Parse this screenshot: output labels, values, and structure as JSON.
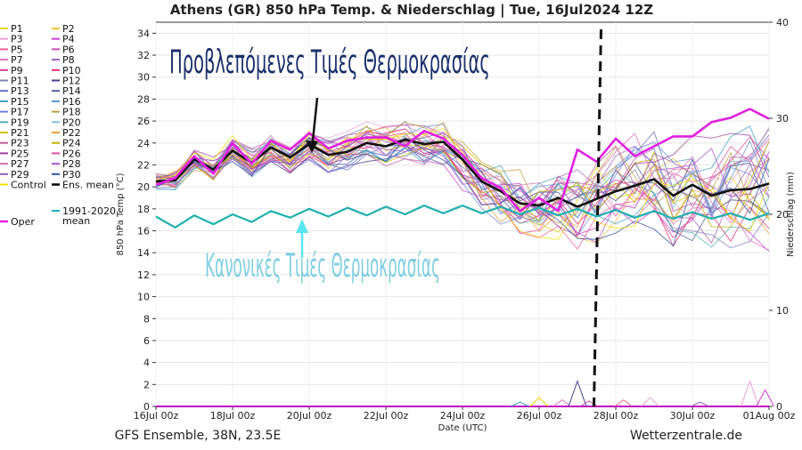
{
  "chart_data": {
    "type": "line",
    "title": "Athens  (GR)  850 hPa Temp. & Niederschlag | Tue, 16Jul2024 12Z",
    "xlabel": "Date (UTC)",
    "ylabel": "850 hPa Temp (°C)",
    "y2label": "Niederschlag (mm)",
    "ylim": [
      0,
      35
    ],
    "y2lim": [
      0,
      40
    ],
    "yticks": [
      0,
      2,
      4,
      6,
      8,
      10,
      12,
      14,
      16,
      18,
      20,
      22,
      24,
      26,
      28,
      30,
      32,
      34
    ],
    "y2ticks": [
      0,
      10,
      20,
      30,
      40
    ],
    "x_start": "16Jul 00z",
    "x_end": "01Aug 00z",
    "xticks": [
      "16Jul 00z",
      "18Jul 00z",
      "20Jul 00z",
      "22Jul 00z",
      "24Jul 00z",
      "26Jul 00z",
      "28Jul 00z",
      "30Jul 00z",
      "01Aug 00z"
    ],
    "xtick_days": [
      0,
      2,
      4,
      6,
      8,
      10,
      12,
      14,
      16
    ],
    "init_marker_day": 11.5,
    "legend": {
      "placement": "left",
      "entries": [
        {
          "name": "P1",
          "color": "#e8d400"
        },
        {
          "name": "P2",
          "color": "#f0c040"
        },
        {
          "name": "P3",
          "color": "#e8a0d8"
        },
        {
          "name": "P4",
          "color": "#d040d0"
        },
        {
          "name": "P5",
          "color": "#f06090"
        },
        {
          "name": "P6",
          "color": "#c050b0"
        },
        {
          "name": "P7",
          "color": "#e070c0"
        },
        {
          "name": "P8",
          "color": "#a060c0"
        },
        {
          "name": "P9",
          "color": "#d04090"
        },
        {
          "name": "P10",
          "color": "#e03070"
        },
        {
          "name": "P11",
          "color": "#8080b0"
        },
        {
          "name": "P12",
          "color": "#404090"
        },
        {
          "name": "P13",
          "color": "#6070c0"
        },
        {
          "name": "P14",
          "color": "#5060a0"
        },
        {
          "name": "P15",
          "color": "#40a0c0"
        },
        {
          "name": "P16",
          "color": "#6090d0"
        },
        {
          "name": "P17",
          "color": "#7080e0"
        },
        {
          "name": "P18",
          "color": "#c0a040"
        },
        {
          "name": "P19",
          "color": "#50b0b0"
        },
        {
          "name": "P20",
          "color": "#80c0e0"
        },
        {
          "name": "P21",
          "color": "#d0c000"
        },
        {
          "name": "P22",
          "color": "#f0a040"
        },
        {
          "name": "P23",
          "color": "#c060a0"
        },
        {
          "name": "P24",
          "color": "#c0b000"
        },
        {
          "name": "P25",
          "color": "#a040a0"
        },
        {
          "name": "P26",
          "color": "#e050a0"
        },
        {
          "name": "P27",
          "color": "#d070b0"
        },
        {
          "name": "P28",
          "color": "#b050d0"
        },
        {
          "name": "P29",
          "color": "#9060b0"
        },
        {
          "name": "P30",
          "color": "#3050a0"
        },
        {
          "name": "Control",
          "color": "#f0e000"
        },
        {
          "name": "Ens. mean",
          "color": "#000000"
        },
        {
          "name": "Oper",
          "color": "#e020e0"
        },
        {
          "name": "1991-2020\nmean",
          "color": "#20b0b0"
        }
      ]
    },
    "series": [
      {
        "name": "Ens. mean",
        "color": "#111111",
        "x": [
          0,
          0.5,
          1,
          1.5,
          2,
          2.5,
          3,
          3.5,
          4,
          4.5,
          5,
          5.5,
          6,
          6.5,
          7,
          7.5,
          8,
          8.5,
          9,
          9.5,
          10,
          10.5,
          11,
          11.5,
          12,
          12.5,
          13,
          13.5,
          14,
          14.5,
          15,
          15.5,
          16
        ],
        "y": [
          20.5,
          20.6,
          22.5,
          21.6,
          23.3,
          22.2,
          23.6,
          22.7,
          23.9,
          22.9,
          23.2,
          24.0,
          23.7,
          24.3,
          23.9,
          24.1,
          22.5,
          20.5,
          19.6,
          18.5,
          18.3,
          19.0,
          18.2,
          18.9,
          19.6,
          20.1,
          20.7,
          19.2,
          20.2,
          19.2,
          19.7,
          19.8,
          20.3
        ]
      },
      {
        "name": "Oper",
        "color": "#e020e0",
        "x": [
          0,
          0.5,
          1,
          1.5,
          2,
          2.5,
          3,
          3.5,
          4,
          4.5,
          5,
          5.5,
          6,
          6.5,
          7,
          7.5,
          8,
          8.5,
          9,
          9.5,
          10,
          10.5,
          11,
          11.5,
          12,
          12.5,
          13,
          13.5,
          14,
          14.5,
          15,
          15.5,
          16
        ],
        "y": [
          20.2,
          20.8,
          22.8,
          21.2,
          24.0,
          22.1,
          24.2,
          23.4,
          24.9,
          23.5,
          24.2,
          24.5,
          24.5,
          23.7,
          25.1,
          24.4,
          22.9,
          20.8,
          19.9,
          17.8,
          19.0,
          17.8,
          23.4,
          22.3,
          24.4,
          22.8,
          23.7,
          24.6,
          24.6,
          25.9,
          26.3,
          27.1,
          26.2
        ]
      },
      {
        "name": "1991-2020\nmean",
        "color": "#20b0b0",
        "x": [
          0,
          0.5,
          1,
          1.5,
          2,
          2.5,
          3,
          3.5,
          4,
          4.5,
          5,
          5.5,
          6,
          6.5,
          7,
          7.5,
          8,
          8.5,
          9,
          9.5,
          10,
          10.5,
          11,
          11.5,
          12,
          12.5,
          13,
          13.5,
          14,
          14.5,
          15,
          15.5,
          16
        ],
        "y": [
          17.3,
          16.3,
          17.4,
          16.6,
          17.5,
          16.8,
          17.8,
          17.2,
          18.0,
          17.3,
          18.1,
          17.4,
          18.2,
          17.5,
          18.3,
          17.6,
          18.3,
          17.6,
          18.2,
          17.5,
          18.1,
          17.4,
          18.0,
          17.3,
          17.9,
          17.2,
          17.8,
          17.1,
          17.7,
          17.1,
          17.6,
          17.0,
          17.6
        ]
      }
    ]
  },
  "annotations": {
    "forecast_label": "Προβλεπόμενες Τιμές Θερμοκρασίας",
    "normal_label": "Κανονικές Τιμές Θερμοκρασίας"
  },
  "footer": {
    "left": "GFS Ensemble, 38N, 23.5E",
    "right": "Wetterzentrale.de"
  }
}
